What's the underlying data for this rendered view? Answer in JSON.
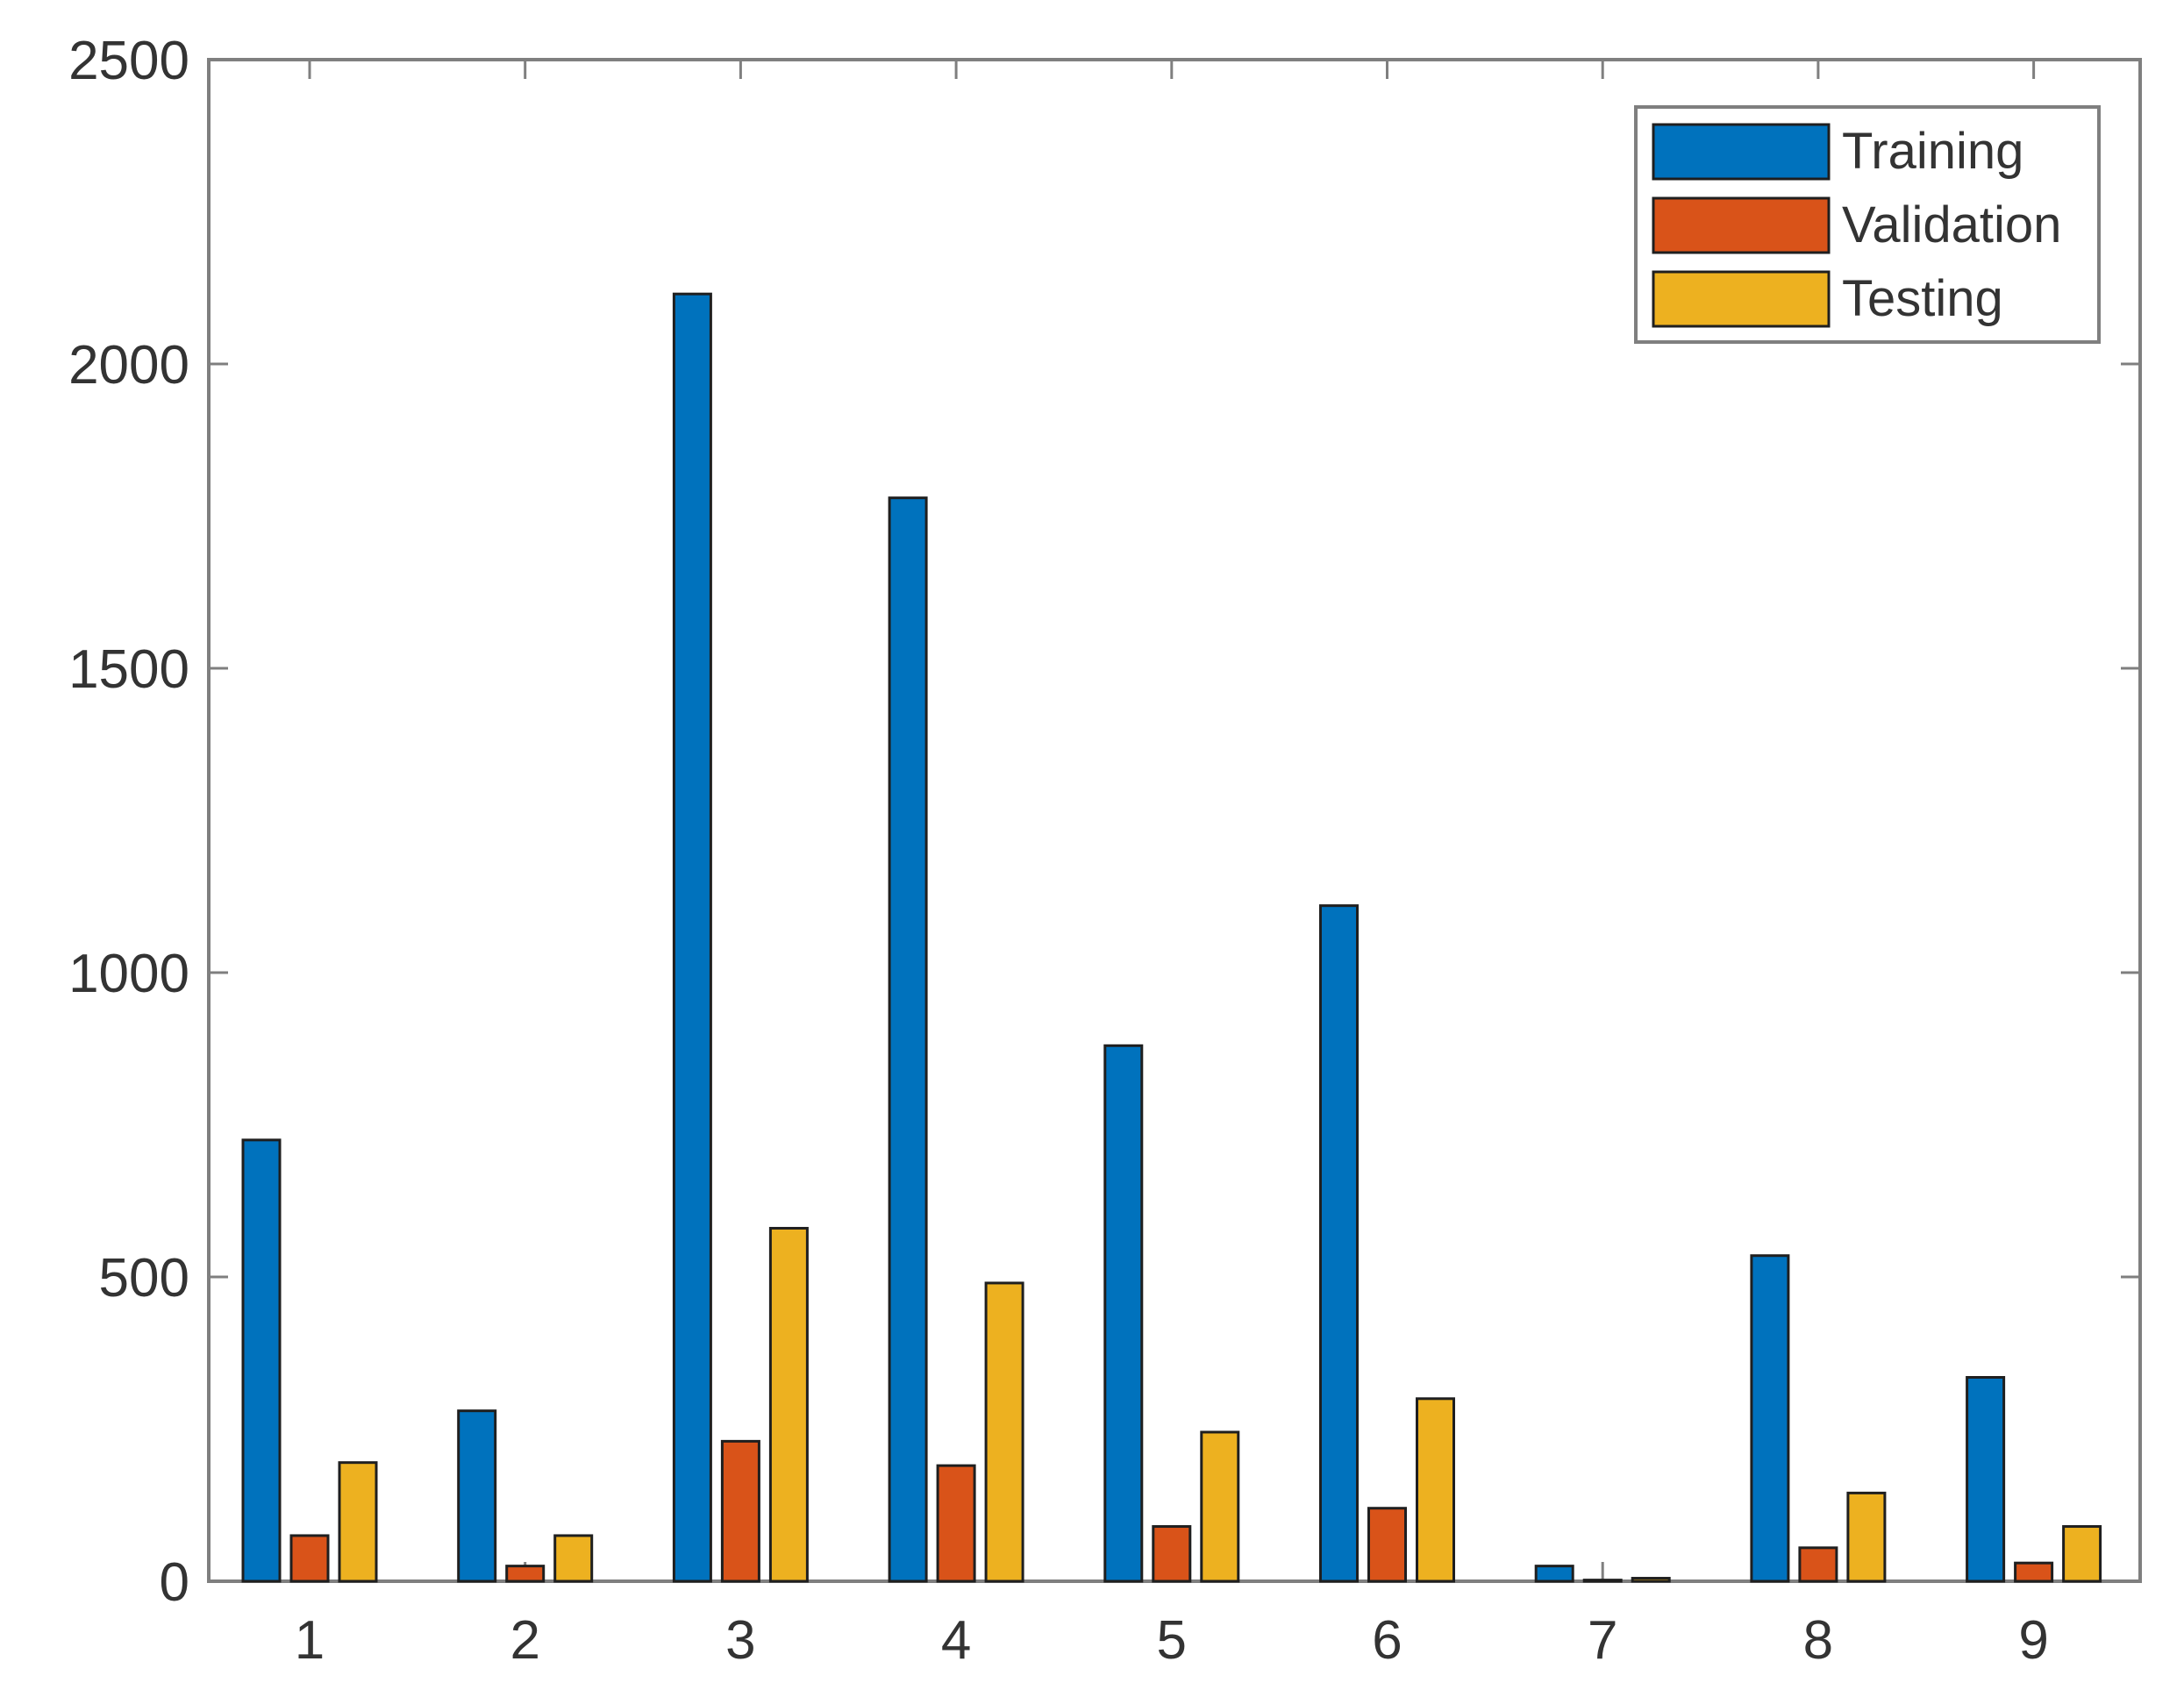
{
  "chart_data": {
    "type": "bar",
    "title": "",
    "xlabel": "",
    "ylabel": "",
    "categories": [
      "1",
      "2",
      "3",
      "4",
      "5",
      "6",
      "7",
      "8",
      "9"
    ],
    "series": [
      {
        "name": "Training",
        "color": "#0072BD",
        "values": [
          725,
          280,
          2115,
          1780,
          880,
          1110,
          25,
          535,
          335
        ]
      },
      {
        "name": "Validation",
        "color": "#D95319",
        "values": [
          75,
          25,
          230,
          190,
          90,
          120,
          2,
          55,
          30
        ]
      },
      {
        "name": "Testing",
        "color": "#EDB120",
        "values": [
          195,
          75,
          580,
          490,
          245,
          300,
          5,
          145,
          90
        ]
      }
    ],
    "ylim": [
      0,
      2500
    ],
    "yticks": [
      0,
      500,
      1000,
      1500,
      2000,
      2500
    ],
    "grid": false,
    "legend_position": "top-right"
  }
}
